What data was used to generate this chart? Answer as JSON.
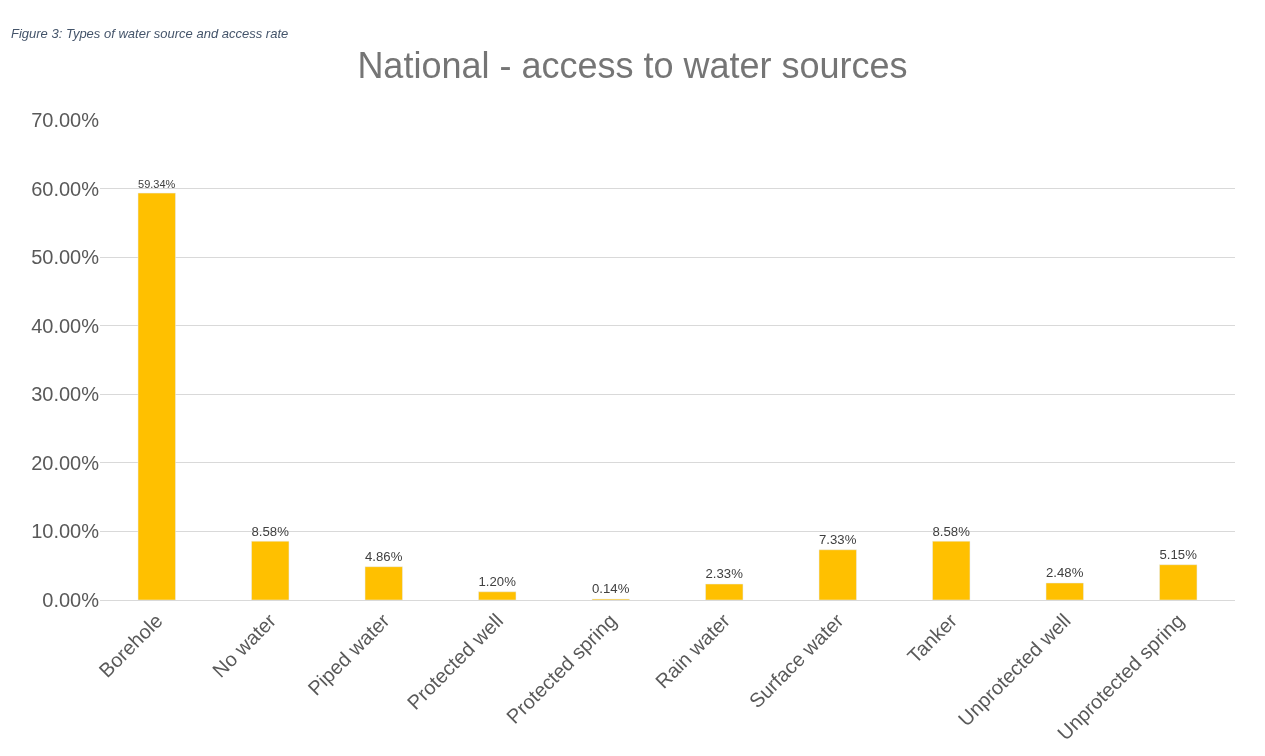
{
  "chart_data": {
    "type": "bar",
    "title": "National - access to water sources",
    "annotations": [
      "Figure 3: Types of water source and access rate"
    ],
    "categories": [
      "Borehole",
      "No water",
      "Piped water",
      "Protected well",
      "Protected spring",
      "Rain water",
      "Surface water",
      "Tanker",
      "Unprotected well",
      "Unprotected spring"
    ],
    "values": [
      59.34,
      8.58,
      4.86,
      1.2,
      0.14,
      2.33,
      7.33,
      8.58,
      2.48,
      5.15
    ],
    "value_labels": [
      "59.34%",
      "8.58%",
      "4.86%",
      "1.20%",
      "0.14%",
      "2.33%",
      "7.33%",
      "8.58%",
      "2.48%",
      "5.15%"
    ],
    "color": "#ffc000",
    "ylim": [
      0,
      70
    ],
    "yticks": [
      {
        "value": 0,
        "label": "0.00%"
      },
      {
        "value": 10,
        "label": "10.00%"
      },
      {
        "value": 20,
        "label": "20.00%"
      },
      {
        "value": 30,
        "label": "30.00%"
      },
      {
        "value": 40,
        "label": "40.00%"
      },
      {
        "value": 50,
        "label": "50.00%"
      },
      {
        "value": 60,
        "label": "60.00%"
      },
      {
        "value": 70,
        "label": "70.00%"
      }
    ],
    "grid": "y",
    "legend": false
  }
}
